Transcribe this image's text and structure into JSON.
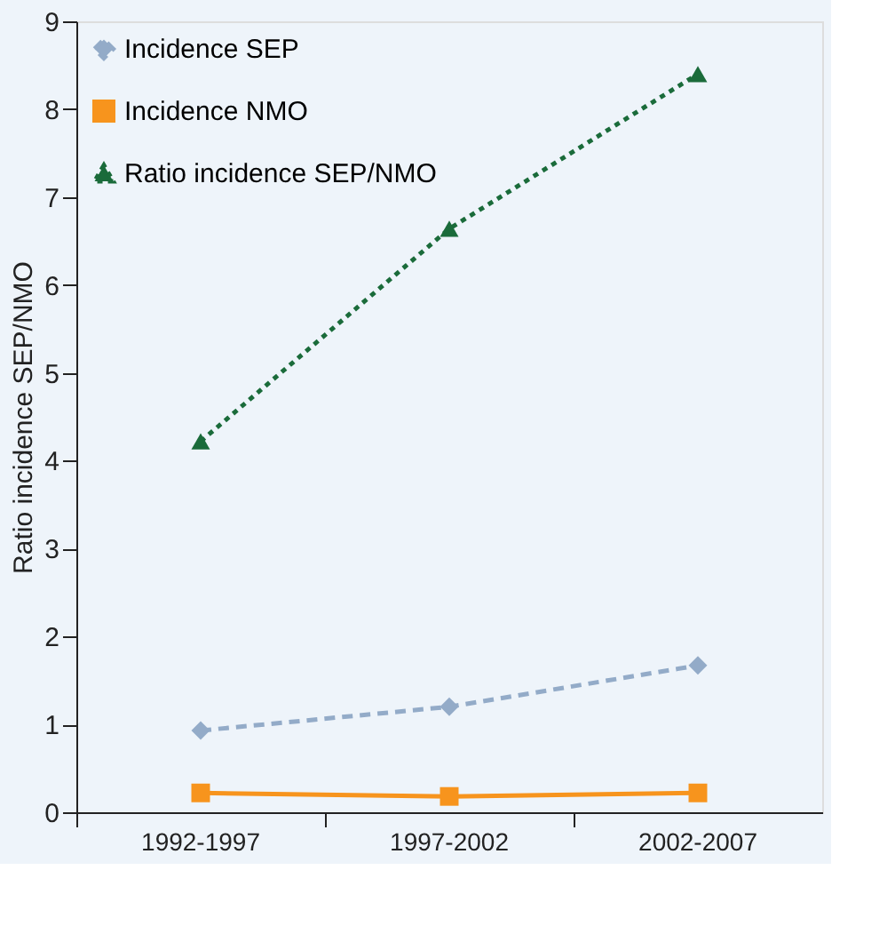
{
  "chart_data": {
    "type": "line",
    "ylabel": "Ratio incidence SEP/NMO",
    "categories": [
      "1992-1997",
      "1997-2002",
      "2002-2007"
    ],
    "ylim": [
      0,
      9
    ],
    "yticks": [
      0,
      1,
      2,
      3,
      4,
      5,
      6,
      7,
      8,
      9
    ],
    "grid": false,
    "legend": "top left",
    "series": [
      {
        "name": "Incidence SEP",
        "color": "#93abc8",
        "values": [
          0.93,
          1.2,
          1.67
        ],
        "marker": "diamond",
        "line_style": "dashed"
      },
      {
        "name": "Incidence NMO",
        "color": "#f7941d",
        "values": [
          0.22,
          0.18,
          0.22
        ],
        "marker": "square",
        "line_style": "solid"
      },
      {
        "name": "Ratio incidence SEP/NMO",
        "color": "#1a6b3a",
        "values": [
          4.22,
          6.64,
          8.4
        ],
        "marker": "triangle",
        "line_style": "dotted"
      }
    ]
  }
}
